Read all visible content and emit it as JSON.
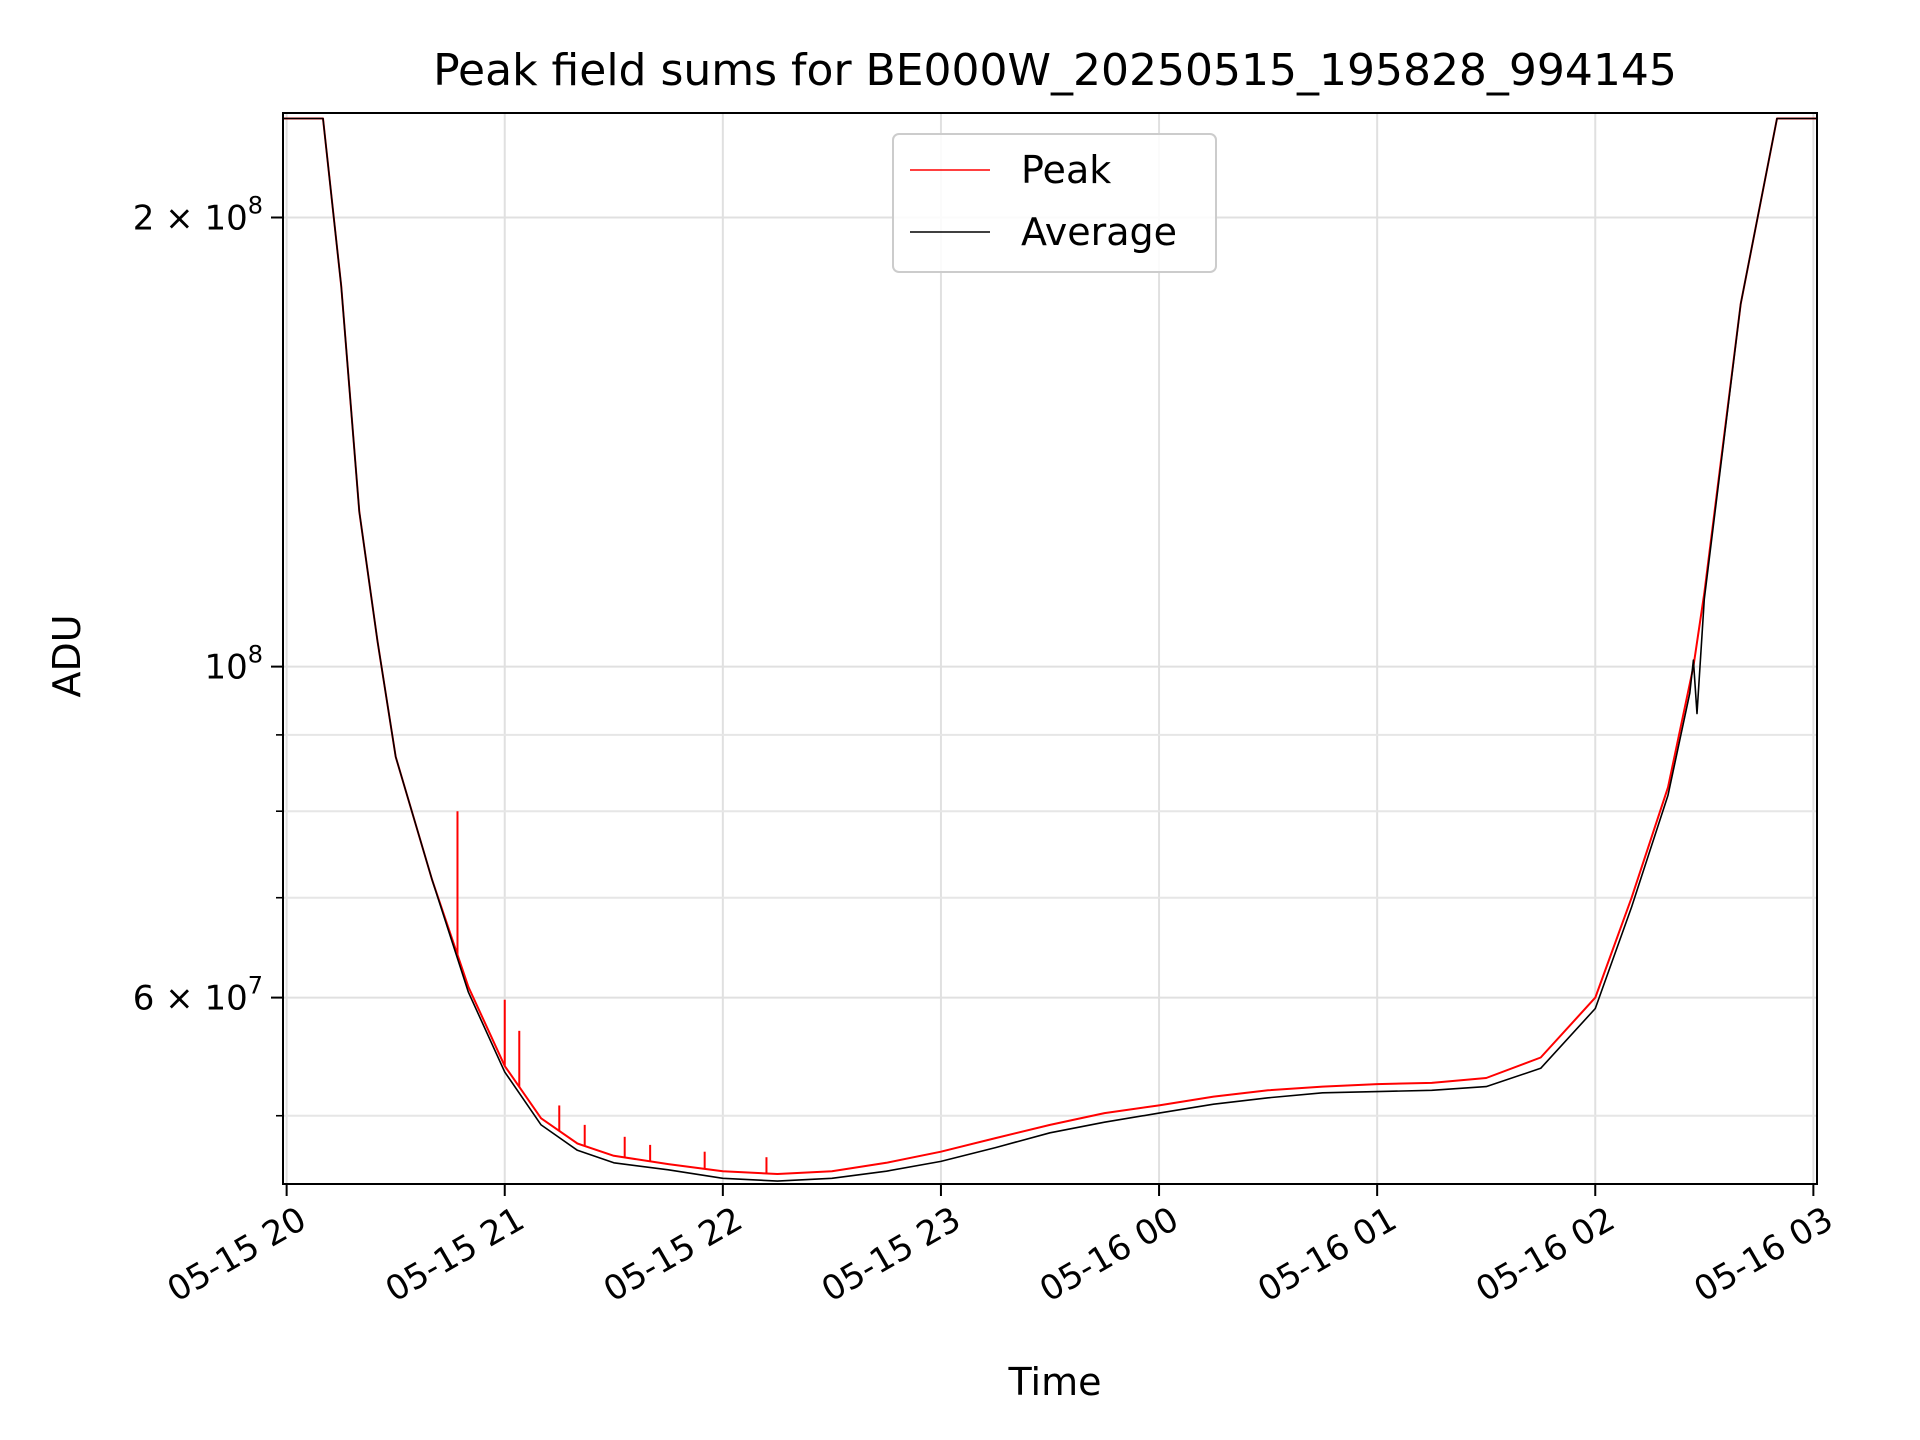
{
  "chart_data": {
    "type": "line",
    "title": "Peak field sums for BE000W_20250515_195828_994145",
    "xlabel": "Time",
    "ylabel": "ADU",
    "yscale": "log",
    "ylim": [
      45000000,
      235000000
    ],
    "xlim": [
      "2025-05-15T19:59:00",
      "2025-05-16T03:01:00"
    ],
    "grid": true,
    "legend_position": "top-center",
    "x_ticks": [
      {
        "t": "2025-05-15T20:00:00",
        "label": "05-15 20"
      },
      {
        "t": "2025-05-15T21:00:00",
        "label": "05-15 21"
      },
      {
        "t": "2025-05-15T22:00:00",
        "label": "05-15 22"
      },
      {
        "t": "2025-05-15T23:00:00",
        "label": "05-15 23"
      },
      {
        "t": "2025-05-16T00:00:00",
        "label": "05-16 00"
      },
      {
        "t": "2025-05-16T01:00:00",
        "label": "05-16 01"
      },
      {
        "t": "2025-05-16T02:00:00",
        "label": "05-16 02"
      },
      {
        "t": "2025-05-16T03:00:00",
        "label": "05-16 03"
      }
    ],
    "y_major_ticks": [
      {
        "v": 60000000,
        "mantissa": "6",
        "exponent": "7"
      },
      {
        "v": 100000000,
        "mantissa": "",
        "exponent": "8"
      },
      {
        "v": 200000000,
        "mantissa": "2",
        "exponent": "8"
      }
    ],
    "y_minor_ticks": [
      50000000,
      70000000,
      80000000,
      90000000
    ],
    "series": [
      {
        "name": "Peak",
        "color": "#ff0000",
        "x": [
          "2025-05-15T19:59:00",
          "2025-05-15T20:10:00",
          "2025-05-15T20:15:00",
          "2025-05-15T20:20:00",
          "2025-05-15T20:25:00",
          "2025-05-15T20:30:00",
          "2025-05-15T20:40:00",
          "2025-05-15T20:50:00",
          "2025-05-15T21:00:00",
          "2025-05-15T21:10:00",
          "2025-05-15T21:20:00",
          "2025-05-15T21:30:00",
          "2025-05-15T21:45:00",
          "2025-05-15T22:00:00",
          "2025-05-15T22:15:00",
          "2025-05-15T22:30:00",
          "2025-05-15T22:45:00",
          "2025-05-15T23:00:00",
          "2025-05-15T23:15:00",
          "2025-05-15T23:30:00",
          "2025-05-15T23:45:00",
          "2025-05-16T00:00:00",
          "2025-05-16T00:15:00",
          "2025-05-16T00:30:00",
          "2025-05-16T00:45:00",
          "2025-05-16T01:00:00",
          "2025-05-16T01:15:00",
          "2025-05-16T01:30:00",
          "2025-05-16T01:45:00",
          "2025-05-16T02:00:00",
          "2025-05-16T02:10:00",
          "2025-05-16T02:20:00",
          "2025-05-16T02:27:00",
          "2025-05-16T02:30:00",
          "2025-05-16T02:40:00",
          "2025-05-16T02:50:00",
          "2025-05-16T03:01:00"
        ],
        "values": [
          233000000,
          233000000,
          180000000,
          127000000,
          104000000,
          87000000,
          72000000,
          61000000,
          54000000,
          49800000,
          47900000,
          47000000,
          46400000,
          45900000,
          45700000,
          45900000,
          46500000,
          47300000,
          48300000,
          49300000,
          50200000,
          50800000,
          51500000,
          52000000,
          52300000,
          52500000,
          52600000,
          53000000,
          54700000,
          60000000,
          70000000,
          83000000,
          100000000,
          112000000,
          175000000,
          233000000,
          233000000
        ],
        "spikes": [
          {
            "t": "2025-05-15T20:47:00",
            "v": 80000000
          },
          {
            "t": "2025-05-15T21:00:00",
            "v": 59800000
          },
          {
            "t": "2025-05-15T21:04:00",
            "v": 57000000
          },
          {
            "t": "2025-05-15T21:15:00",
            "v": 50800000
          },
          {
            "t": "2025-05-15T21:22:00",
            "v": 49300000
          },
          {
            "t": "2025-05-15T21:33:00",
            "v": 48400000
          },
          {
            "t": "2025-05-15T21:40:00",
            "v": 47800000
          },
          {
            "t": "2025-05-15T21:55:00",
            "v": 47300000
          },
          {
            "t": "2025-05-15T22:12:00",
            "v": 46900000
          }
        ]
      },
      {
        "name": "Average",
        "color": "#000000",
        "x": [
          "2025-05-15T19:59:00",
          "2025-05-15T20:10:00",
          "2025-05-15T20:15:00",
          "2025-05-15T20:20:00",
          "2025-05-15T20:25:00",
          "2025-05-15T20:30:00",
          "2025-05-15T20:40:00",
          "2025-05-15T20:50:00",
          "2025-05-15T21:00:00",
          "2025-05-15T21:10:00",
          "2025-05-15T21:20:00",
          "2025-05-15T21:30:00",
          "2025-05-15T21:45:00",
          "2025-05-15T22:00:00",
          "2025-05-15T22:15:00",
          "2025-05-15T22:30:00",
          "2025-05-15T22:45:00",
          "2025-05-15T23:00:00",
          "2025-05-15T23:15:00",
          "2025-05-15T23:30:00",
          "2025-05-15T23:45:00",
          "2025-05-16T00:00:00",
          "2025-05-16T00:15:00",
          "2025-05-16T00:30:00",
          "2025-05-16T00:45:00",
          "2025-05-16T01:00:00",
          "2025-05-16T01:15:00",
          "2025-05-16T01:30:00",
          "2025-05-16T01:45:00",
          "2025-05-16T02:00:00",
          "2025-05-16T02:10:00",
          "2025-05-16T02:20:00",
          "2025-05-16T02:26:00",
          "2025-05-16T02:27:00",
          "2025-05-16T02:28:00",
          "2025-05-16T02:30:00",
          "2025-05-16T02:40:00",
          "2025-05-16T02:50:00",
          "2025-05-16T03:01:00"
        ],
        "values": [
          233000000,
          233000000,
          180000000,
          127000000,
          104000000,
          87000000,
          72000000,
          60500000,
          53500000,
          49300000,
          47400000,
          46500000,
          46000000,
          45400000,
          45200000,
          45400000,
          45900000,
          46600000,
          47600000,
          48700000,
          49500000,
          50200000,
          50900000,
          51400000,
          51800000,
          51900000,
          52000000,
          52300000,
          53800000,
          59000000,
          69000000,
          82000000,
          96000000,
          101000000,
          93000000,
          111000000,
          175000000,
          233000000,
          233000000
        ]
      }
    ]
  }
}
